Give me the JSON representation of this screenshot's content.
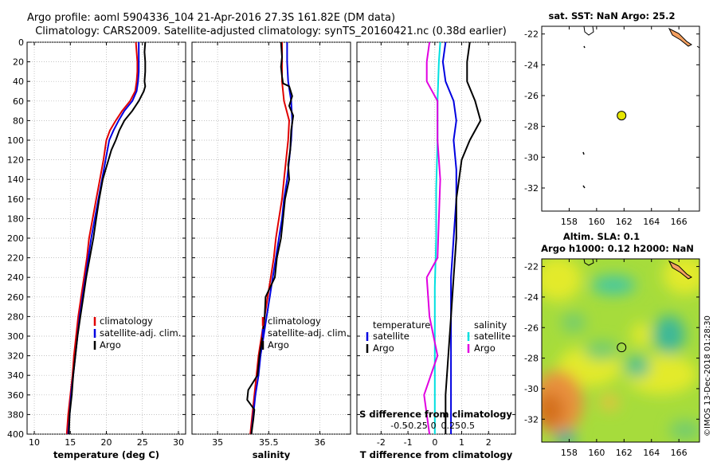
{
  "title": {
    "line1": "Argo profile: aoml 5904336_104 21-Apr-2016 27.3S 161.82E (DM data)",
    "line2": "Climatology: CARS2009. Satellite-adjusted climatology: synTS_20160421.nc (0.38d earlier)"
  },
  "stamp": "©IMOS 13-Dec-2018 01:28:30",
  "colors": {
    "climatology": "#e00000",
    "satellite": "#0000e0",
    "argo": "#000000",
    "sal_satellite": "#00e0e0",
    "sal_argo": "#e000e0",
    "marker": "#e6e600"
  },
  "chart_data": [
    {
      "type": "line",
      "id": "temperature",
      "xlabel": "temperature (deg C)",
      "ylabel": "",
      "xlim": [
        9,
        31
      ],
      "ylim": [
        0,
        400
      ],
      "xticks": [
        10,
        15,
        20,
        25,
        30
      ],
      "yticks": [
        0,
        20,
        40,
        60,
        80,
        100,
        120,
        140,
        160,
        180,
        200,
        220,
        240,
        260,
        280,
        300,
        320,
        340,
        360,
        380,
        400
      ],
      "grid": true,
      "legend": {
        "placement": "lower-right",
        "entries": [
          "climatology",
          "satellite-adj. clim.",
          "Argo"
        ]
      },
      "series": [
        {
          "name": "climatology",
          "color": "#e00000",
          "points": [
            [
              24.1,
              0
            ],
            [
              24.2,
              10
            ],
            [
              24.3,
              20
            ],
            [
              24.3,
              30
            ],
            [
              24.2,
              40
            ],
            [
              24.0,
              50
            ],
            [
              23.3,
              60
            ],
            [
              22.2,
              70
            ],
            [
              21.3,
              80
            ],
            [
              20.5,
              90
            ],
            [
              20.0,
              100
            ],
            [
              19.6,
              120
            ],
            [
              19.1,
              140
            ],
            [
              18.6,
              160
            ],
            [
              18.1,
              180
            ],
            [
              17.6,
              200
            ],
            [
              17.3,
              220
            ],
            [
              16.9,
              240
            ],
            [
              16.5,
              260
            ],
            [
              16.1,
              280
            ],
            [
              15.8,
              300
            ],
            [
              15.5,
              320
            ],
            [
              15.3,
              340
            ],
            [
              15.0,
              360
            ],
            [
              14.7,
              380
            ],
            [
              14.5,
              400
            ]
          ]
        },
        {
          "name": "satellite-adj. clim.",
          "color": "#0000e0",
          "points": [
            [
              24.5,
              0
            ],
            [
              24.5,
              10
            ],
            [
              24.5,
              20
            ],
            [
              24.5,
              30
            ],
            [
              24.4,
              40
            ],
            [
              24.2,
              50
            ],
            [
              23.6,
              60
            ],
            [
              22.5,
              70
            ],
            [
              21.7,
              80
            ],
            [
              21.0,
              90
            ],
            [
              20.4,
              100
            ],
            [
              19.9,
              120
            ],
            [
              19.4,
              140
            ],
            [
              18.9,
              160
            ],
            [
              18.4,
              180
            ],
            [
              17.9,
              200
            ],
            [
              17.5,
              220
            ],
            [
              17.1,
              240
            ],
            [
              16.7,
              260
            ],
            [
              16.3,
              280
            ],
            [
              16.0,
              300
            ],
            [
              15.7,
              320
            ],
            [
              15.4,
              340
            ],
            [
              15.1,
              360
            ],
            [
              14.9,
              380
            ],
            [
              14.7,
              400
            ]
          ]
        },
        {
          "name": "Argo",
          "color": "#000000",
          "points": [
            [
              25.4,
              0
            ],
            [
              25.3,
              10
            ],
            [
              25.4,
              20
            ],
            [
              25.4,
              30
            ],
            [
              25.3,
              40
            ],
            [
              25.4,
              45
            ],
            [
              25.2,
              50
            ],
            [
              24.5,
              60
            ],
            [
              23.6,
              70
            ],
            [
              22.5,
              80
            ],
            [
              21.8,
              90
            ],
            [
              21.3,
              100
            ],
            [
              20.7,
              110
            ],
            [
              20.3,
              120
            ],
            [
              19.9,
              130
            ],
            [
              19.5,
              140
            ],
            [
              19.0,
              160
            ],
            [
              18.6,
              180
            ],
            [
              18.2,
              200
            ],
            [
              17.7,
              220
            ],
            [
              17.2,
              240
            ],
            [
              16.8,
              260
            ],
            [
              16.4,
              280
            ],
            [
              16.0,
              300
            ],
            [
              15.7,
              320
            ],
            [
              15.4,
              340
            ],
            [
              15.2,
              360
            ],
            [
              14.9,
              380
            ],
            [
              14.8,
              400
            ]
          ]
        }
      ]
    },
    {
      "type": "line",
      "id": "salinity",
      "xlabel": "salinity",
      "ylabel": "",
      "xlim": [
        34.75,
        36.3
      ],
      "ylim": [
        0,
        400
      ],
      "xticks": [
        35,
        35.5,
        36
      ],
      "yticks": [
        0,
        20,
        40,
        60,
        80,
        100,
        120,
        140,
        160,
        180,
        200,
        220,
        240,
        260,
        280,
        300,
        320,
        340,
        360,
        380,
        400
      ],
      "grid": true,
      "legend": {
        "placement": "lower-right",
        "entries": [
          "climatology",
          "satellite-adj. clim.",
          "Argo"
        ]
      },
      "series": [
        {
          "name": "climatology",
          "color": "#e00000",
          "points": [
            [
              35.63,
              0
            ],
            [
              35.63,
              20
            ],
            [
              35.63,
              40
            ],
            [
              35.65,
              60
            ],
            [
              35.7,
              80
            ],
            [
              35.69,
              100
            ],
            [
              35.67,
              120
            ],
            [
              35.65,
              140
            ],
            [
              35.63,
              160
            ],
            [
              35.6,
              180
            ],
            [
              35.57,
              200
            ],
            [
              35.55,
              220
            ],
            [
              35.52,
              240
            ],
            [
              35.49,
              260
            ],
            [
              35.46,
              280
            ],
            [
              35.43,
              300
            ],
            [
              35.4,
              320
            ],
            [
              35.38,
              340
            ],
            [
              35.36,
              360
            ],
            [
              35.34,
              380
            ],
            [
              35.32,
              400
            ]
          ]
        },
        {
          "name": "satellite-adj. clim.",
          "color": "#0000e0",
          "points": [
            [
              35.68,
              0
            ],
            [
              35.68,
              20
            ],
            [
              35.69,
              40
            ],
            [
              35.72,
              60
            ],
            [
              35.73,
              80
            ],
            [
              35.72,
              100
            ],
            [
              35.7,
              120
            ],
            [
              35.68,
              140
            ],
            [
              35.65,
              160
            ],
            [
              35.63,
              180
            ],
            [
              35.6,
              200
            ],
            [
              35.57,
              220
            ],
            [
              35.54,
              240
            ],
            [
              35.51,
              260
            ],
            [
              35.48,
              280
            ],
            [
              35.45,
              300
            ],
            [
              35.42,
              320
            ],
            [
              35.4,
              340
            ],
            [
              35.37,
              360
            ],
            [
              35.35,
              380
            ],
            [
              35.33,
              400
            ]
          ]
        },
        {
          "name": "Argo",
          "color": "#000000",
          "points": [
            [
              35.62,
              0
            ],
            [
              35.63,
              15
            ],
            [
              35.62,
              25
            ],
            [
              35.63,
              35
            ],
            [
              35.64,
              42
            ],
            [
              35.7,
              45
            ],
            [
              35.73,
              55
            ],
            [
              35.7,
              65
            ],
            [
              35.74,
              75
            ],
            [
              35.72,
              90
            ],
            [
              35.71,
              110
            ],
            [
              35.69,
              125
            ],
            [
              35.7,
              140
            ],
            [
              35.66,
              160
            ],
            [
              35.64,
              180
            ],
            [
              35.62,
              200
            ],
            [
              35.58,
              220
            ],
            [
              35.56,
              240
            ],
            [
              35.47,
              260
            ],
            [
              35.46,
              280
            ],
            [
              35.44,
              300
            ],
            [
              35.41,
              320
            ],
            [
              35.39,
              340
            ],
            [
              35.3,
              355
            ],
            [
              35.29,
              365
            ],
            [
              35.36,
              375
            ],
            [
              35.35,
              385
            ],
            [
              35.33,
              400
            ]
          ]
        }
      ]
    },
    {
      "type": "line",
      "id": "difference",
      "xlabel": "T difference from climatology",
      "xlabel2": "S difference from climatology",
      "xlim": [
        -2.9,
        3.0
      ],
      "ylim": [
        0,
        400
      ],
      "xticks": [
        -2,
        -1,
        0,
        1,
        2
      ],
      "xticks2": [
        "-0.5",
        "-0.25",
        "0",
        "0.25",
        "0.5"
      ],
      "yticks": [
        0,
        20,
        40,
        60,
        80,
        100,
        120,
        140,
        160,
        180,
        200,
        220,
        240,
        260,
        280,
        300,
        320,
        340,
        360,
        380,
        400
      ],
      "grid": true,
      "legend": {
        "placement": "lower",
        "temperature_header": "temperature",
        "salinity_header": "salinity",
        "entries": [
          "satellite",
          "Argo",
          "satellite",
          "Argo"
        ]
      },
      "series": [
        {
          "name": "T satellite",
          "color": "#0000e0",
          "points": [
            [
              0.4,
              0
            ],
            [
              0.3,
              20
            ],
            [
              0.4,
              40
            ],
            [
              0.7,
              60
            ],
            [
              0.8,
              80
            ],
            [
              0.7,
              100
            ],
            [
              0.8,
              130
            ],
            [
              0.8,
              160
            ],
            [
              0.7,
              200
            ],
            [
              0.6,
              240
            ],
            [
              0.6,
              280
            ],
            [
              0.6,
              320
            ],
            [
              0.6,
              360
            ],
            [
              0.6,
              400
            ]
          ]
        },
        {
          "name": "T Argo",
          "color": "#000000",
          "points": [
            [
              1.3,
              0
            ],
            [
              1.2,
              20
            ],
            [
              1.2,
              40
            ],
            [
              1.5,
              60
            ],
            [
              1.7,
              80
            ],
            [
              1.3,
              100
            ],
            [
              1.0,
              120
            ],
            [
              0.9,
              140
            ],
            [
              0.8,
              160
            ],
            [
              0.8,
              200
            ],
            [
              0.7,
              240
            ],
            [
              0.6,
              280
            ],
            [
              0.5,
              320
            ],
            [
              0.4,
              360
            ],
            [
              0.4,
              400
            ]
          ]
        },
        {
          "name": "S satellite",
          "color": "#00e0e0",
          "points": [
            [
              0.2,
              0
            ],
            [
              0.15,
              20
            ],
            [
              0.1,
              60
            ],
            [
              0.1,
              100
            ],
            [
              0.05,
              150
            ],
            [
              0.05,
              200
            ],
            [
              0.0,
              250
            ],
            [
              0.0,
              300
            ],
            [
              0.0,
              350
            ],
            [
              0.0,
              400
            ]
          ]
        },
        {
          "name": "S Argo",
          "color": "#e000e0",
          "points": [
            [
              -0.2,
              0
            ],
            [
              -0.3,
              20
            ],
            [
              -0.3,
              40
            ],
            [
              0.1,
              60
            ],
            [
              0.1,
              100
            ],
            [
              0.2,
              140
            ],
            [
              0.15,
              180
            ],
            [
              0.1,
              220
            ],
            [
              -0.3,
              240
            ],
            [
              -0.2,
              280
            ],
            [
              0.1,
              320
            ],
            [
              -0.4,
              360
            ],
            [
              -0.3,
              380
            ],
            [
              -0.2,
              400
            ]
          ]
        }
      ]
    },
    {
      "type": "heatmap",
      "id": "sst_map",
      "title": "sat. SST: NaN Argo: 25.2",
      "xlim": [
        156,
        167.5
      ],
      "ylim": [
        -33.5,
        -21.5
      ],
      "xticks": [
        158,
        160,
        162,
        164,
        166
      ],
      "yticks": [
        -22,
        -24,
        -26,
        -28,
        -30,
        -32
      ],
      "argo_position": [
        161.82,
        -27.3
      ]
    },
    {
      "type": "heatmap",
      "id": "sla_map",
      "title": "Altim. SLA: 0.1",
      "title2": "Argo h1000: 0.12 h2000: NaN",
      "xlim": [
        156,
        167.5
      ],
      "ylim": [
        -33.5,
        -21.5
      ],
      "xticks": [
        158,
        160,
        162,
        164,
        166
      ],
      "yticks": [
        -22,
        -24,
        -26,
        -28,
        -30,
        -32
      ],
      "argo_position": [
        161.82,
        -27.3
      ]
    }
  ]
}
